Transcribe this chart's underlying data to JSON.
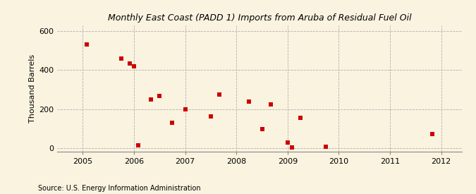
{
  "title": "Monthly East Coast (PADD 1) Imports from Aruba of Residual Fuel Oil",
  "ylabel": "Thousand Barrels",
  "source": "Source: U.S. Energy Information Administration",
  "background_color": "#FAF3E0",
  "marker_color": "#CC0000",
  "xlim": [
    2004.5,
    2012.4
  ],
  "ylim": [
    -15,
    630
  ],
  "yticks": [
    0,
    200,
    400,
    600
  ],
  "xticks": [
    2005,
    2006,
    2007,
    2008,
    2009,
    2010,
    2011,
    2012
  ],
  "data_x": [
    2005.08,
    2005.75,
    2005.92,
    2006.0,
    2006.08,
    2006.33,
    2006.5,
    2006.75,
    2007.0,
    2007.5,
    2007.67,
    2008.25,
    2008.5,
    2008.67,
    2009.0,
    2009.08,
    2009.25,
    2009.75,
    2011.83
  ],
  "data_y": [
    530,
    460,
    435,
    420,
    15,
    250,
    270,
    130,
    200,
    165,
    275,
    240,
    100,
    225,
    30,
    5,
    155,
    8,
    75
  ]
}
